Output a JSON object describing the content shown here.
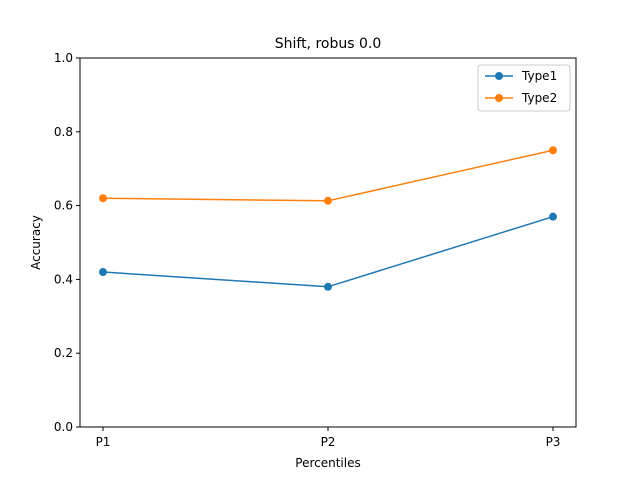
{
  "chart_data": {
    "type": "line",
    "title": "Shift, robus 0.0",
    "xlabel": "Percentiles",
    "ylabel": "Accuracy",
    "categories": [
      "P1",
      "P2",
      "P3"
    ],
    "ylim": [
      0.0,
      1.0
    ],
    "yticks": [
      "0.0",
      "0.2",
      "0.4",
      "0.6",
      "0.8",
      "1.0"
    ],
    "grid": false,
    "legend_position": "top-right",
    "series": [
      {
        "name": "Type1",
        "values": [
          0.42,
          0.38,
          0.57
        ],
        "color": "#1f77b4"
      },
      {
        "name": "Type2",
        "values": [
          0.62,
          0.613,
          0.75
        ],
        "color": "#ff7f0e"
      }
    ]
  }
}
